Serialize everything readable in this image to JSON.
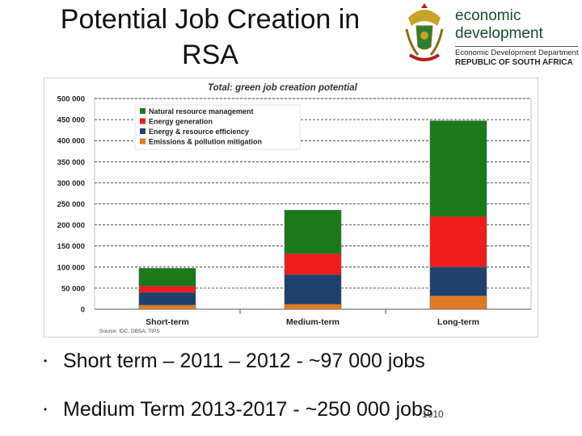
{
  "slide": {
    "title_line1": "Potential Job Creation in",
    "title_line2": "RSA",
    "page_number": "1010"
  },
  "logo": {
    "line1": "economic",
    "line2": "development",
    "department": "Economic Development Department",
    "country": "REPUBLIC OF SOUTH AFRICA"
  },
  "bullets": [
    "Short term – 2011 – 2012 - ~97 000 jobs",
    "Medium Term 2013-2017 - ~250 000 jobs"
  ],
  "chart_data": {
    "type": "bar",
    "stacked": true,
    "title": "Total: green job creation potential",
    "source": "Source: IDC, DBSA, TIPS",
    "categories": [
      "Short-term",
      "Medium-term",
      "Long-term"
    ],
    "ylim": [
      0,
      500000
    ],
    "yticks": [
      0,
      50000,
      100000,
      150000,
      200000,
      250000,
      300000,
      350000,
      400000,
      450000,
      500000
    ],
    "ytick_labels": [
      "0",
      "50 000",
      "100 000",
      "150 000",
      "200 000",
      "250 000",
      "300 000",
      "350 000",
      "400 000",
      "450 000",
      "500 000"
    ],
    "grid": true,
    "legend_position": "top-left",
    "series": [
      {
        "name": "Emissions & pollution mitigation",
        "color": "#e07a22",
        "values": [
          10000,
          12000,
          32000
        ]
      },
      {
        "name": "Energy & resource efficiency",
        "color": "#1f3f6e",
        "values": [
          30000,
          70000,
          68000
        ]
      },
      {
        "name": "Energy generation",
        "color": "#ee1c1c",
        "values": [
          15000,
          50000,
          120000
        ]
      },
      {
        "name": "Natural resource management",
        "color": "#1a7a1a",
        "values": [
          42000,
          103000,
          227000
        ]
      }
    ],
    "legend_order": [
      "Natural resource management",
      "Energy generation",
      "Energy & resource efficiency",
      "Emissions & pollution mitigation"
    ]
  }
}
